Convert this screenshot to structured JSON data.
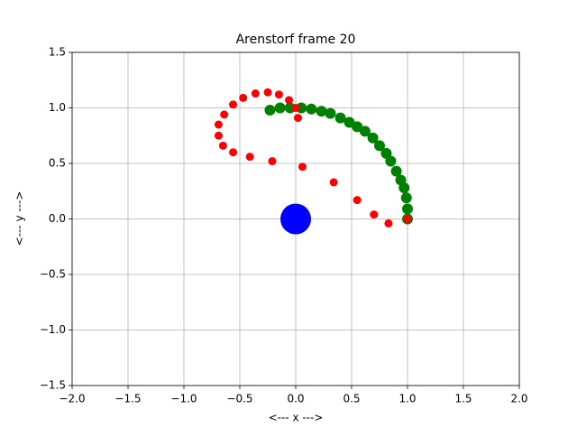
{
  "chart_data": {
    "type": "scatter",
    "title": "Arenstorf frame 20",
    "x_label": "<---  x  --->",
    "y_label": "<---  y  --->",
    "xlim": [
      -2,
      2
    ],
    "ylim": [
      -1.5,
      1.5
    ],
    "xticks": [
      {
        "value": -2,
        "label": "−2.0"
      },
      {
        "value": -1.5,
        "label": "−1.5"
      },
      {
        "value": -1,
        "label": "−1.0"
      },
      {
        "value": -0.5,
        "label": "−0.5"
      },
      {
        "value": 0,
        "label": "0.0"
      },
      {
        "value": 0.5,
        "label": "0.5"
      },
      {
        "value": 1,
        "label": "1.0"
      },
      {
        "value": 1.5,
        "label": "1.5"
      },
      {
        "value": 2,
        "label": "2.0"
      }
    ],
    "yticks": [
      {
        "value": -1.5,
        "label": "−1.5"
      },
      {
        "value": -1,
        "label": "−1.0"
      },
      {
        "value": -0.5,
        "label": "−0.5"
      },
      {
        "value": 0,
        "label": "0.0"
      },
      {
        "value": 0.5,
        "label": "0.5"
      },
      {
        "value": 1,
        "label": "1.0"
      },
      {
        "value": 1.5,
        "label": "1.5"
      }
    ],
    "grid": true,
    "series": [
      {
        "color": "#008000",
        "marker_size": 6,
        "x": [
          1.0,
          1.0,
          0.99,
          0.97,
          0.94,
          0.9,
          0.85,
          0.81,
          0.75,
          0.69,
          0.62,
          0.55,
          0.48,
          0.4,
          0.31,
          0.23,
          0.14,
          0.05,
          -0.05,
          -0.14,
          -0.23
        ],
        "values": [
          0.0,
          0.09,
          0.19,
          0.28,
          0.35,
          0.43,
          0.52,
          0.59,
          0.66,
          0.73,
          0.79,
          0.83,
          0.87,
          0.91,
          0.95,
          0.97,
          0.99,
          1.0,
          1.0,
          1.0,
          0.98
        ]
      },
      {
        "color": "#ff0000",
        "marker_size": 4.5,
        "x": [
          1.0,
          0.83,
          0.7,
          0.55,
          0.34,
          0.06,
          -0.21,
          -0.41,
          -0.56,
          -0.65,
          -0.69,
          -0.69,
          -0.64,
          -0.56,
          -0.47,
          -0.36,
          -0.25,
          -0.15,
          -0.06,
          0.0,
          0.02
        ],
        "values": [
          0.0,
          -0.04,
          0.04,
          0.17,
          0.33,
          0.47,
          0.52,
          0.56,
          0.6,
          0.66,
          0.75,
          0.85,
          0.94,
          1.03,
          1.09,
          1.13,
          1.14,
          1.12,
          1.07,
          1.0,
          0.91
        ]
      },
      {
        "color": "#0000ff",
        "marker_size": 17,
        "x": [
          0.0
        ],
        "values": [
          0.0
        ]
      }
    ]
  }
}
